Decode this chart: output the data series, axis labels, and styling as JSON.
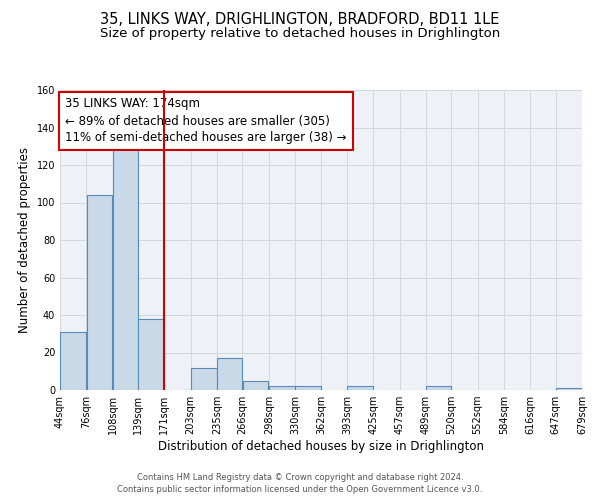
{
  "title": "35, LINKS WAY, DRIGHLINGTON, BRADFORD, BD11 1LE",
  "subtitle": "Size of property relative to detached houses in Drighlington",
  "xlabel": "Distribution of detached houses by size in Drighlington",
  "ylabel": "Number of detached properties",
  "bar_left_edges": [
    44,
    76,
    108,
    139,
    171,
    203,
    235,
    266,
    298,
    330,
    362,
    393,
    425,
    457,
    489,
    520,
    552,
    584,
    616,
    647
  ],
  "bar_widths": [
    32,
    32,
    31,
    32,
    32,
    32,
    31,
    32,
    32,
    32,
    31,
    32,
    32,
    32,
    31,
    32,
    32,
    32,
    31,
    32
  ],
  "bar_heights": [
    31,
    104,
    131,
    38,
    0,
    12,
    17,
    5,
    2,
    2,
    0,
    2,
    0,
    0,
    2,
    0,
    0,
    0,
    0,
    1
  ],
  "bar_facecolor": "#c9d9e8",
  "bar_edgecolor": "#5a8ab5",
  "vline_x": 171,
  "vline_color": "#cc0000",
  "annotation_line1": "35 LINKS WAY: 174sqm",
  "annotation_line2": "← 89% of detached houses are smaller (305)",
  "annotation_line3": "11% of semi-detached houses are larger (38) →",
  "xlim": [
    44,
    679
  ],
  "ylim": [
    0,
    160
  ],
  "yticks": [
    0,
    20,
    40,
    60,
    80,
    100,
    120,
    140,
    160
  ],
  "xtick_labels": [
    "44sqm",
    "76sqm",
    "108sqm",
    "139sqm",
    "171sqm",
    "203sqm",
    "235sqm",
    "266sqm",
    "298sqm",
    "330sqm",
    "362sqm",
    "393sqm",
    "425sqm",
    "457sqm",
    "489sqm",
    "520sqm",
    "552sqm",
    "584sqm",
    "616sqm",
    "647sqm",
    "679sqm"
  ],
  "xtick_positions": [
    44,
    76,
    108,
    139,
    171,
    203,
    235,
    266,
    298,
    330,
    362,
    393,
    425,
    457,
    489,
    520,
    552,
    584,
    616,
    647,
    679
  ],
  "footer_line1": "Contains HM Land Registry data © Crown copyright and database right 2024.",
  "footer_line2": "Contains public sector information licensed under the Open Government Licence v3.0.",
  "grid_color": "#d0d8e0",
  "bg_color": "#eef2f7",
  "title_fontsize": 10.5,
  "subtitle_fontsize": 9.5,
  "axis_label_fontsize": 8.5,
  "tick_fontsize": 7,
  "annotation_fontsize": 8.5,
  "footer_fontsize": 6
}
